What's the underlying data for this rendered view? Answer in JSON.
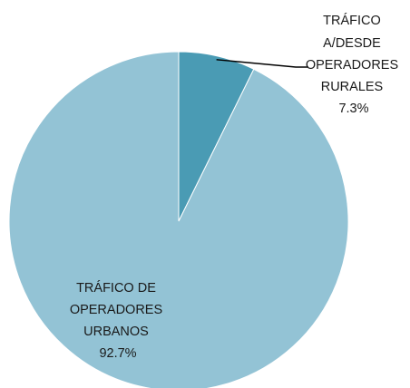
{
  "chart_data": {
    "type": "pie",
    "start_angle_deg": 0,
    "direction": "clockwise",
    "slices": [
      {
        "label_lines": [
          "TRÁFICO",
          "A/DESDE",
          "OPERADORES",
          "RURALES"
        ],
        "value": 7.3,
        "value_label": "7.3%",
        "color": "#4a9bb4"
      },
      {
        "label_lines": [
          "TRÁFICO DE",
          "OPERADORES",
          "URBANOS"
        ],
        "value": 92.7,
        "value_label": "92.7%",
        "color": "#93c3d5"
      }
    ],
    "legend": "none",
    "leader_line_color": "#000000"
  }
}
